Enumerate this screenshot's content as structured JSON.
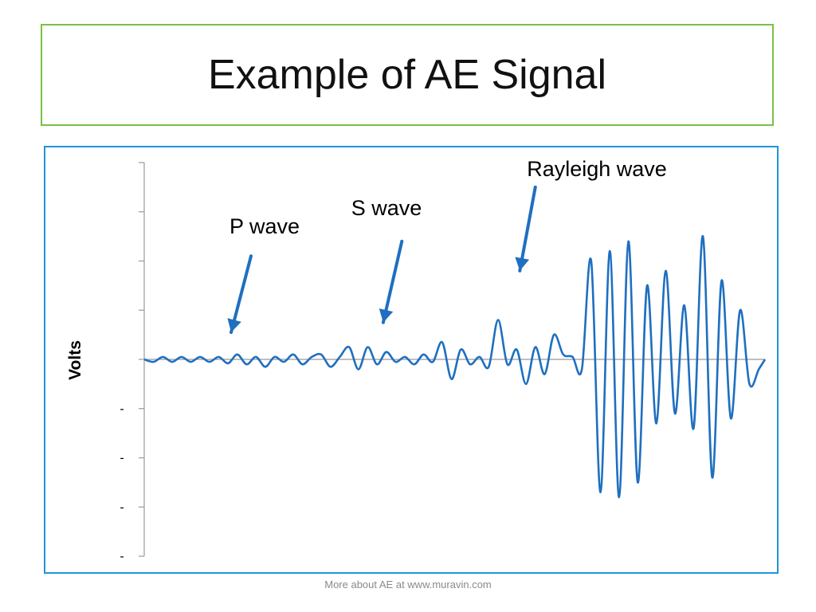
{
  "slide": {
    "title": "Example of AE Signal",
    "footer": "More about AE at www.muravin.com"
  },
  "colors": {
    "title_border": "#7ac143",
    "chart_border": "#1f95d6",
    "signal": "#1f6fc0",
    "arrow": "#1f6fc0",
    "axis": "#999999"
  },
  "chart_data": {
    "type": "line",
    "title": "",
    "xlabel": "",
    "ylabel": "Volts",
    "ylim": [
      -4,
      4
    ],
    "xlim": [
      0,
      100
    ],
    "grid": false,
    "y_ticks": [
      {
        "value": 4,
        "label": ""
      },
      {
        "value": 3,
        "label": ""
      },
      {
        "value": 2,
        "label": ""
      },
      {
        "value": 1,
        "label": ""
      },
      {
        "value": 0,
        "label": ""
      },
      {
        "value": -1,
        "label": "-"
      },
      {
        "value": -2,
        "label": "-"
      },
      {
        "value": -3,
        "label": "-"
      },
      {
        "value": -4,
        "label": "-"
      }
    ],
    "series": [
      {
        "name": "",
        "x": [
          0,
          1.5,
          3,
          4.5,
          6,
          7.5,
          9,
          10.5,
          12,
          13.5,
          15,
          16.5,
          18,
          19.5,
          21,
          22.5,
          24,
          25.5,
          27,
          28.5,
          30,
          31.5,
          33,
          34.5,
          36,
          37.5,
          39,
          40.5,
          42,
          43.5,
          45,
          46.5,
          48,
          49.5,
          51,
          52.5,
          54,
          55.5,
          57,
          58.5,
          60,
          61.5,
          63,
          64.5,
          66,
          67.5,
          69,
          70.5,
          72,
          73.5,
          75,
          76.5,
          78,
          79.5,
          81,
          82.5,
          84,
          85.5,
          87,
          88.5,
          90,
          91.5,
          93,
          94.5,
          96,
          97.5,
          99,
          100
        ],
        "y": [
          0,
          -0.05,
          0.05,
          -0.05,
          0.05,
          -0.05,
          0.05,
          -0.05,
          0.05,
          -0.08,
          0.1,
          -0.1,
          0.05,
          -0.15,
          0.05,
          -0.05,
          0.1,
          -0.1,
          0.05,
          0.1,
          -0.15,
          0.05,
          0.25,
          -0.2,
          0.25,
          -0.1,
          0.15,
          -0.05,
          0.05,
          -0.1,
          0.1,
          -0.05,
          0.35,
          -0.4,
          0.2,
          -0.1,
          0.05,
          -0.15,
          0.8,
          -0.1,
          0.2,
          -0.5,
          0.25,
          -0.3,
          0.5,
          0.1,
          0.05,
          -0.2,
          2.0,
          -2.7,
          2.2,
          -2.8,
          2.4,
          -2.5,
          1.5,
          -1.3,
          1.8,
          -1.1,
          1.1,
          -1.4,
          2.5,
          -2.4,
          1.6,
          -1.2,
          1.0,
          -0.5,
          -0.2,
          0.0
        ]
      }
    ],
    "annotations": [
      {
        "text": "P wave",
        "x": 14,
        "y": 0.5
      },
      {
        "text": "S wave",
        "x": 38,
        "y": 0.8
      },
      {
        "text": "Rayleigh wave",
        "x": 60,
        "y": 1.8
      }
    ]
  }
}
